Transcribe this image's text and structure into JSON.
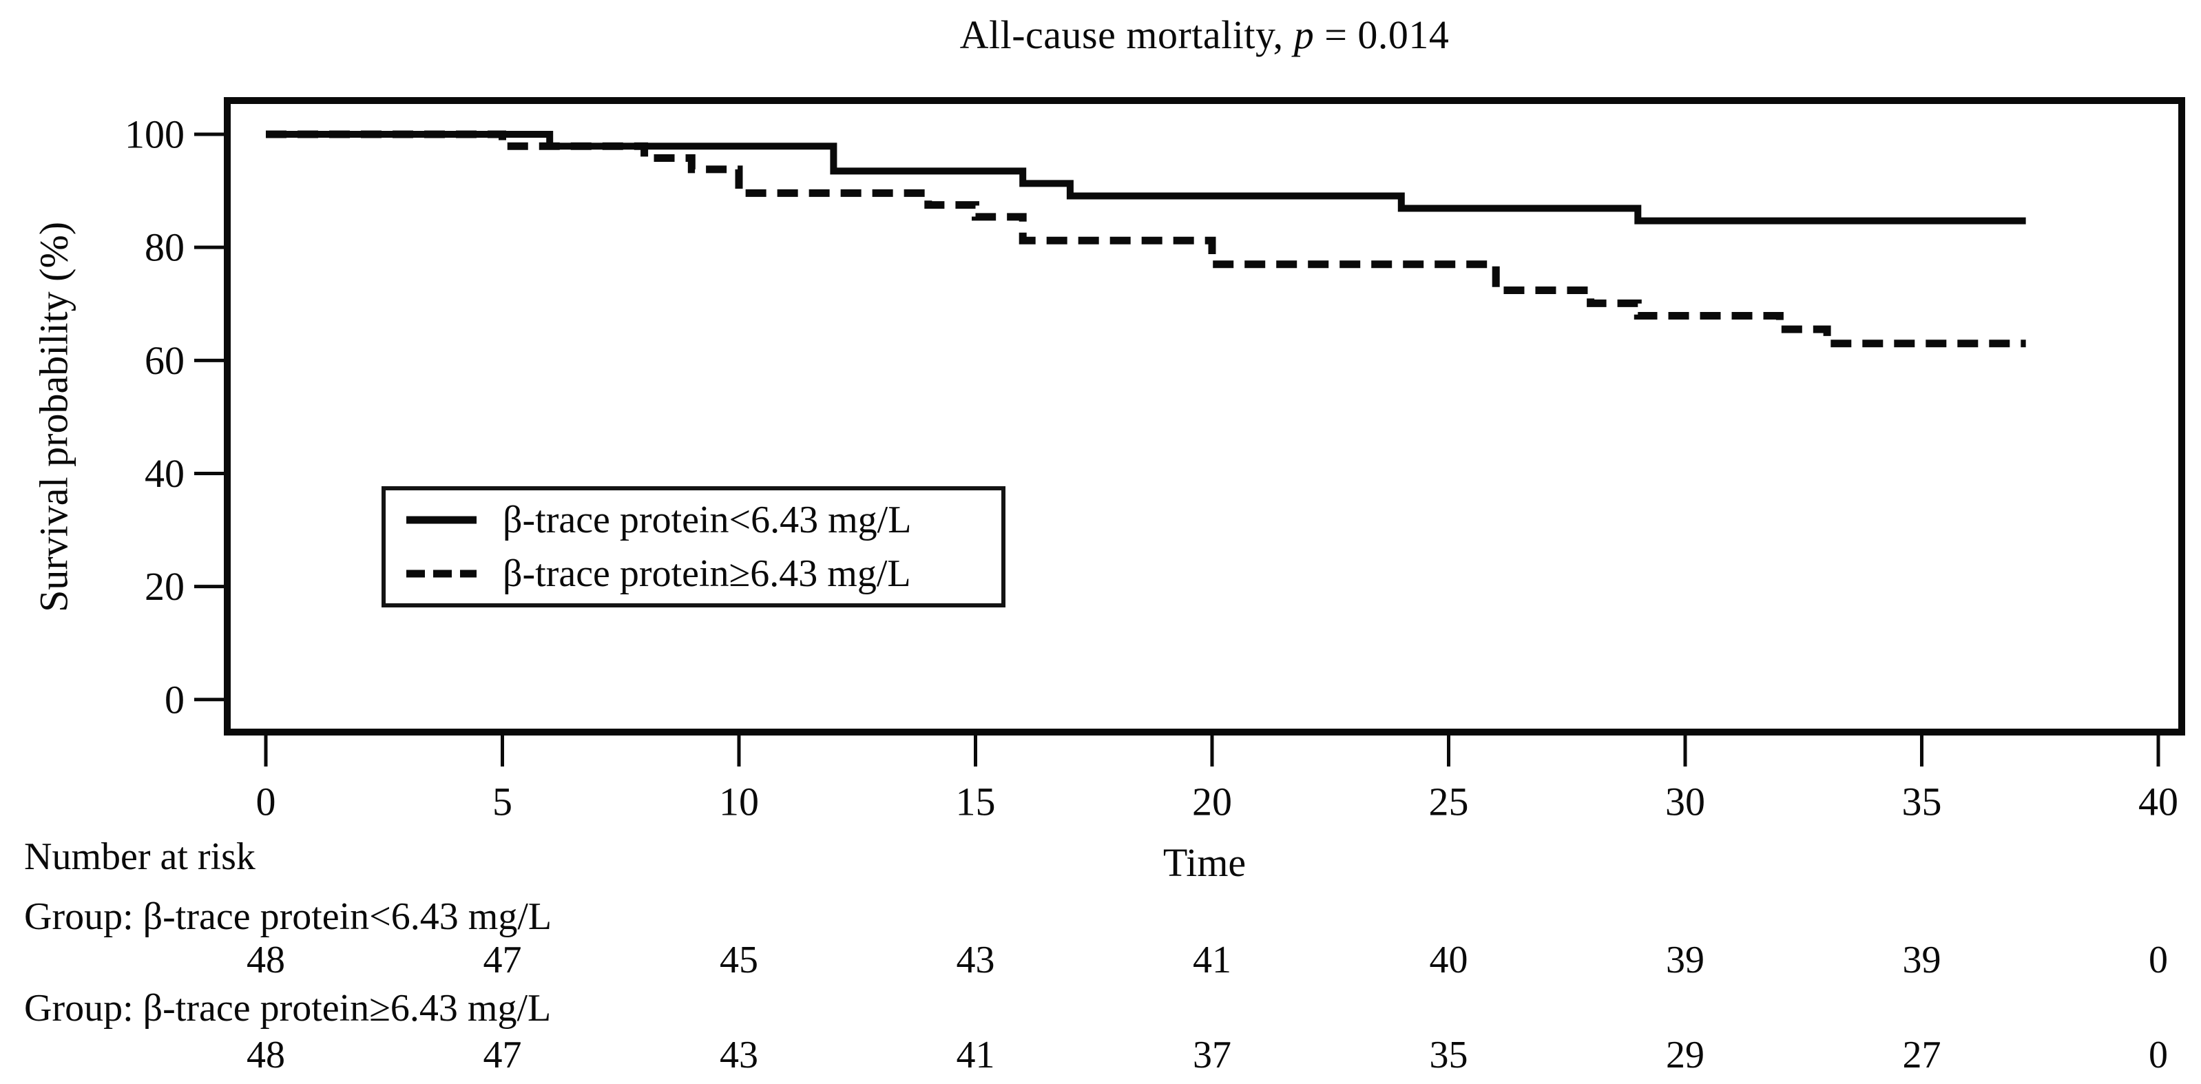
{
  "title": {
    "prefix": "All-cause mortality, ",
    "p_symbol": "p",
    "suffix": " = 0.014"
  },
  "chart_data": {
    "type": "line",
    "subtype": "kaplan-meier-step-curves",
    "title": "All-cause mortality, p = 0.014",
    "p_value": 0.014,
    "xlabel": "Time",
    "ylabel": "Survival probability (%)",
    "x_ticks": [
      0,
      5,
      10,
      15,
      20,
      25,
      30,
      35,
      40
    ],
    "y_ticks": [
      100,
      80,
      60,
      40,
      20,
      0
    ],
    "xlim": [
      -0.8,
      40.5
    ],
    "ylim": [
      -6,
      106
    ],
    "grid": false,
    "legend_position": "inside-left",
    "line_color": "#000000",
    "series": [
      {
        "name": "β-trace protein<6.43 mg/L",
        "line_style": "solid",
        "steps": [
          [
            0,
            100
          ],
          [
            6,
            97.9
          ],
          [
            12,
            93.5
          ],
          [
            16,
            91.3
          ],
          [
            17,
            89.1
          ],
          [
            24,
            86.9
          ],
          [
            29,
            84.7
          ],
          [
            37.2,
            84.7
          ]
        ]
      },
      {
        "name": "β-trace protein≥6.43 mg/L",
        "line_style": "dashed",
        "steps": [
          [
            0,
            100
          ],
          [
            5,
            97.9
          ],
          [
            8,
            95.8
          ],
          [
            9,
            93.8
          ],
          [
            10,
            89.6
          ],
          [
            14,
            87.5
          ],
          [
            15,
            85.4
          ],
          [
            16,
            81.2
          ],
          [
            20,
            77.0
          ],
          [
            26,
            72.4
          ],
          [
            28,
            70.1
          ],
          [
            29,
            67.9
          ],
          [
            32,
            65.5
          ],
          [
            33,
            63.0
          ],
          [
            37.2,
            63.0
          ]
        ]
      }
    ]
  },
  "legend": {
    "solid_label": "β-trace protein<6.43 mg/L",
    "dashed_label": "β-trace protein≥6.43 mg/L"
  },
  "axis": {
    "x_label": "Time",
    "y_label": "Survival probability (%)"
  },
  "risk_table": {
    "heading": "Number at risk",
    "times": [
      0,
      5,
      10,
      15,
      20,
      25,
      30,
      35,
      40
    ],
    "rows": [
      {
        "group_label": "Group: β-trace protein<6.43 mg/L",
        "counts": [
          48,
          47,
          45,
          43,
          41,
          40,
          39,
          39,
          0
        ]
      },
      {
        "group_label": "Group: β-trace protein≥6.43 mg/L",
        "counts": [
          48,
          47,
          43,
          41,
          37,
          35,
          29,
          27,
          0
        ]
      }
    ]
  },
  "colors": {
    "ink": "#0a0a0a",
    "background": "#ffffff"
  }
}
